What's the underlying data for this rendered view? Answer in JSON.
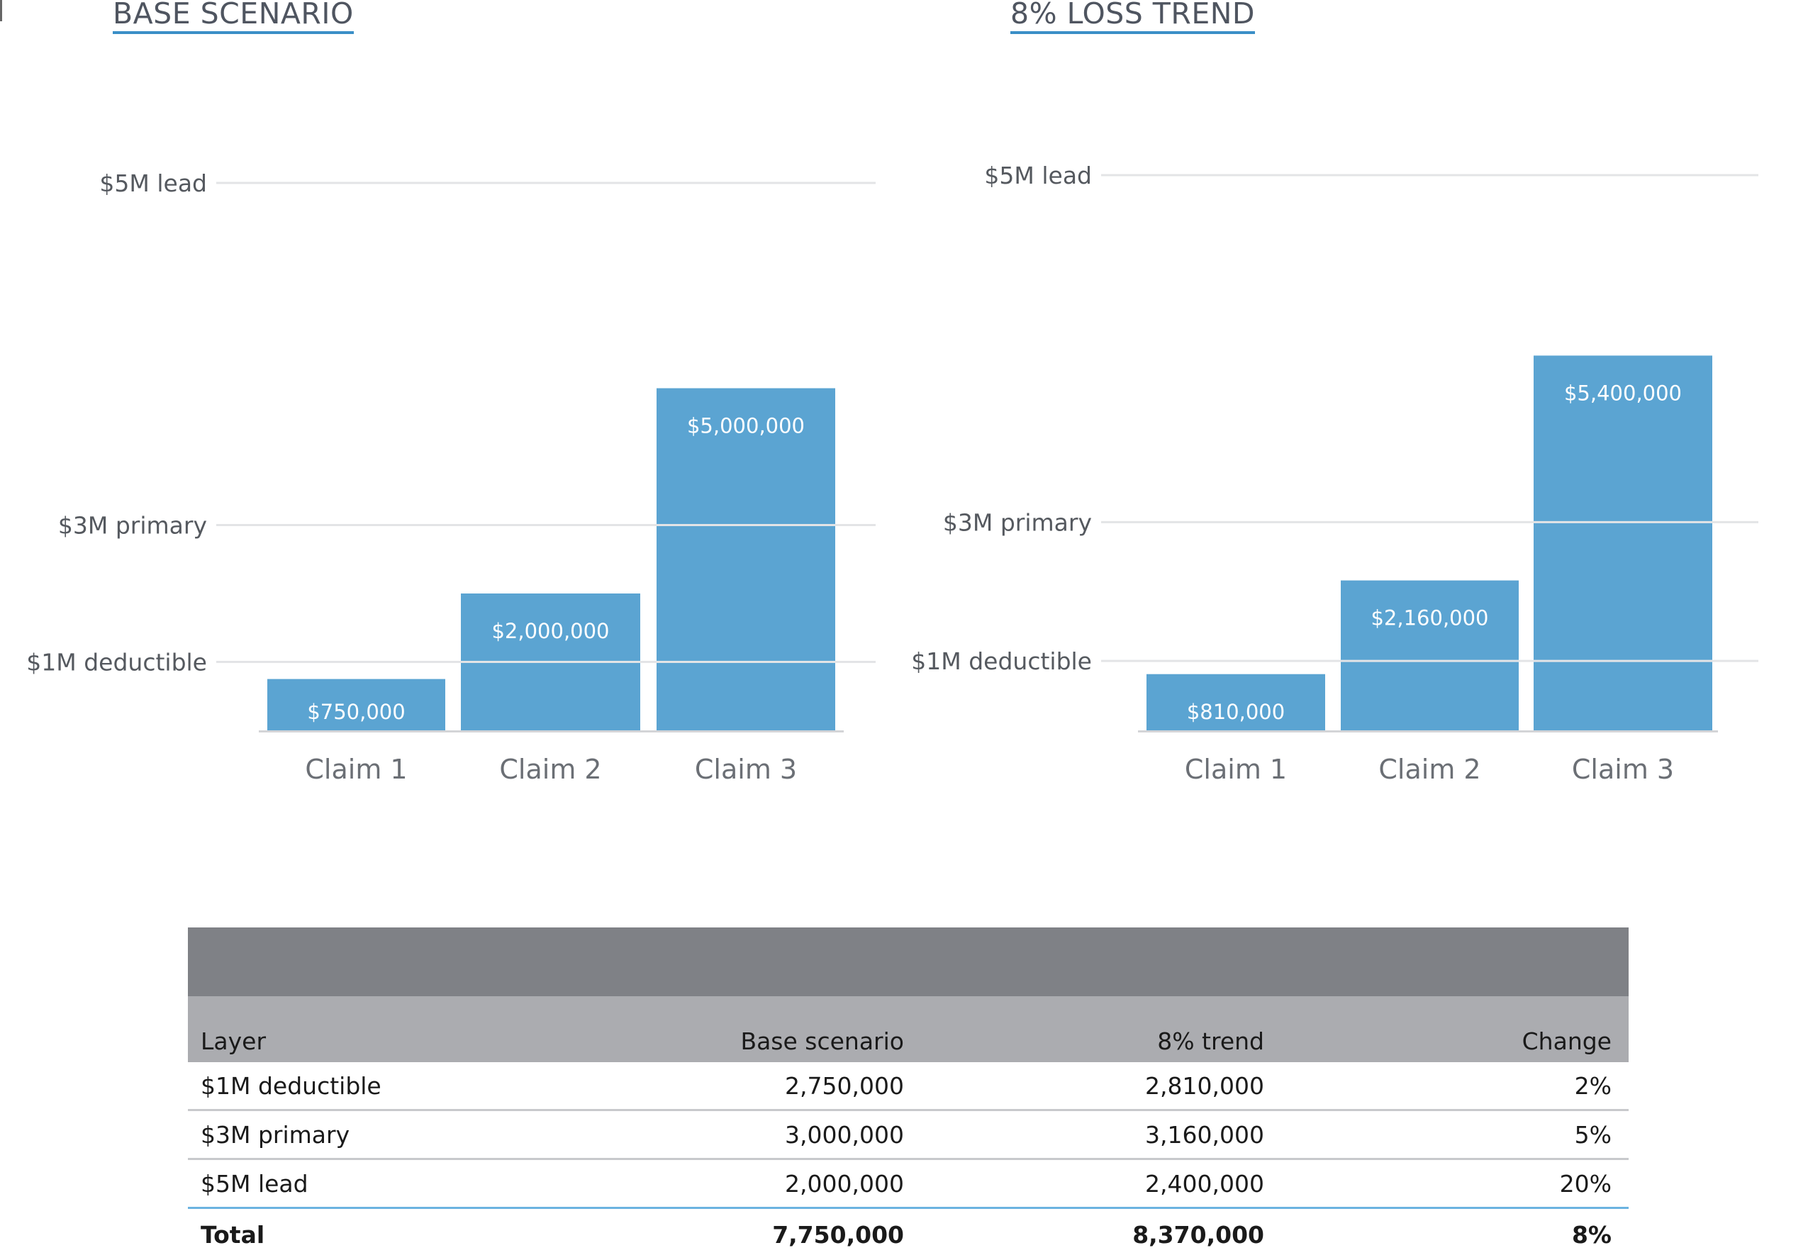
{
  "chart_data": [
    {
      "type": "bar",
      "title": "BASE SCENARIO",
      "categories": [
        "Claim 1",
        "Claim 2",
        "Claim 3"
      ],
      "values": [
        750000,
        2000000,
        5000000
      ],
      "value_labels": [
        "$750,000",
        "$2,000,000",
        "$5,000,000"
      ],
      "reference_lines": [
        {
          "label": "$1M deductible",
          "value": 1000000
        },
        {
          "label": "$3M primary",
          "value": 3000000
        },
        {
          "label": "$5M lead",
          "value": 8000000
        }
      ],
      "ylim": [
        0,
        8000000
      ],
      "bar_color": "#5ba4d2",
      "grid": false
    },
    {
      "type": "bar",
      "title": "8% LOSS TREND",
      "categories": [
        "Claim 1",
        "Claim 2",
        "Claim 3"
      ],
      "values": [
        810000,
        2160000,
        5400000
      ],
      "value_labels": [
        "$810,000",
        "$2,160,000",
        "$5,400,000"
      ],
      "reference_lines": [
        {
          "label": "$1M deductible",
          "value": 1000000
        },
        {
          "label": "$3M primary",
          "value": 3000000
        },
        {
          "label": "$5M lead",
          "value": 8000000
        }
      ],
      "ylim": [
        0,
        8000000
      ],
      "bar_color": "#5ba4d2",
      "grid": false
    }
  ],
  "table": {
    "headers": [
      "Layer",
      "Base scenario",
      "8% trend",
      "Change"
    ],
    "rows": [
      [
        "$1M deductible",
        "2,750,000",
        "2,810,000",
        "2%"
      ],
      [
        "$3M primary",
        "3,000,000",
        "3,160,000",
        "5%"
      ],
      [
        "$5M lead",
        "2,000,000",
        "2,400,000",
        "20%"
      ]
    ],
    "total": [
      "Total",
      "7,750,000",
      "8,370,000",
      "8%"
    ]
  },
  "colors": {
    "bar": "#5ba4d2",
    "title_underline": "#3a8fc7",
    "table_banner": "#7f8186",
    "table_header": "#abacb0",
    "total_rule": "#6bb3e0"
  }
}
